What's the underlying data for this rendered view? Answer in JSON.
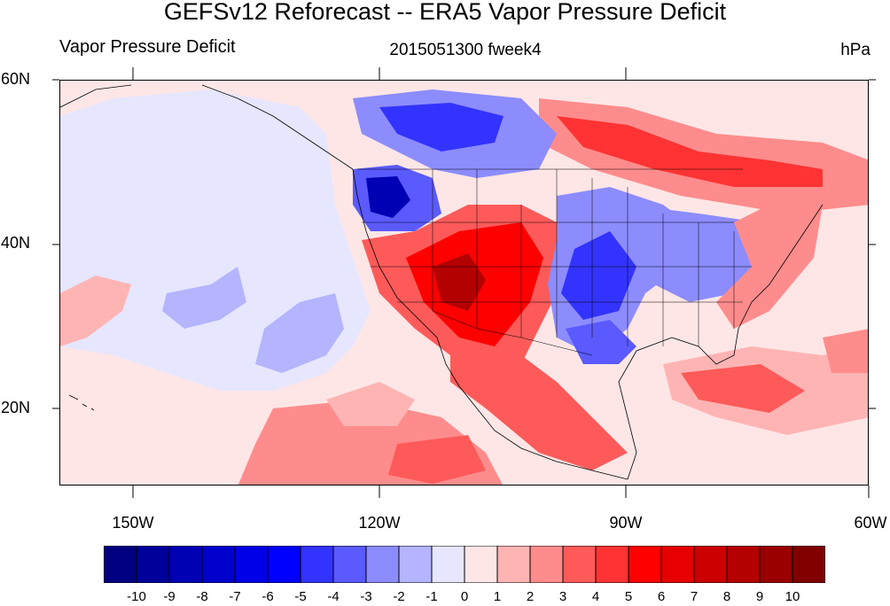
{
  "title": "GEFSv12 Reforecast -- ERA5 Vapor Pressure Deficit",
  "subtitle_left": "Vapor Pressure Deficit",
  "subtitle_center": "2015051300 fweek4",
  "subtitle_right": "hPa",
  "axes": {
    "lat_labels": [
      "60N",
      "40N",
      "20N"
    ],
    "lon_labels": [
      "150W",
      "120W",
      "90W",
      "60W"
    ],
    "lat_range": [
      10,
      60
    ],
    "lon_range": [
      -159,
      -60
    ]
  },
  "colorbar": {
    "labels": [
      "-10",
      "-9",
      "-8",
      "-7",
      "-6",
      "-5",
      "-4",
      "-3",
      "-2",
      "-1",
      "0",
      "1",
      "2",
      "3",
      "4",
      "5",
      "6",
      "7",
      "8",
      "9",
      "10"
    ],
    "colors": [
      "#000080",
      "#00009b",
      "#0000b4",
      "#0000cc",
      "#0000e6",
      "#0000ff",
      "#3333ff",
      "#5a5aff",
      "#8c8cff",
      "#b4b4ff",
      "#e6e6ff",
      "#ffe6e6",
      "#ffb4b4",
      "#ff8c8c",
      "#ff5a5a",
      "#ff3333",
      "#ff0000",
      "#e60000",
      "#cc0000",
      "#b40000",
      "#9b0000",
      "#800000"
    ]
  },
  "colors": {
    "background_anomaly": "#ffe9ea",
    "land_outline": "#000000"
  }
}
